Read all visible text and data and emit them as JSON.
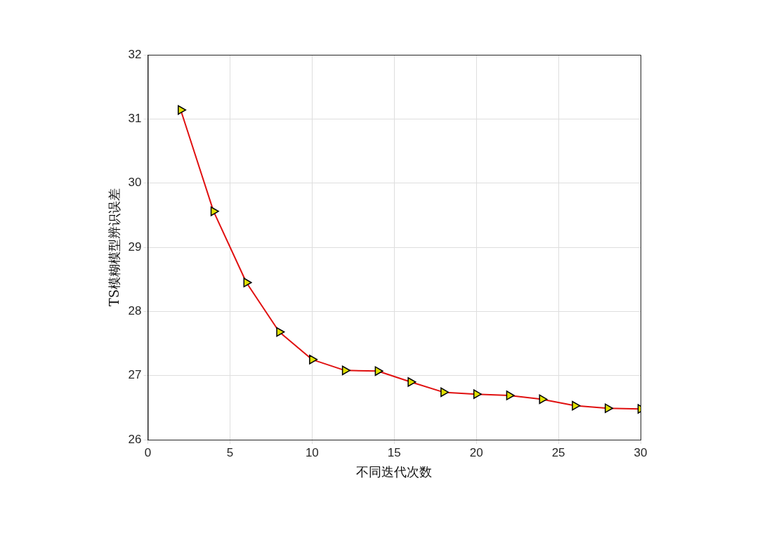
{
  "chart_data": {
    "type": "line",
    "xlabel": "不同迭代次数",
    "ylabel": "TS模糊模型辨识误差",
    "x": [
      2,
      4,
      6,
      8,
      10,
      12,
      14,
      16,
      18,
      20,
      22,
      24,
      26,
      28,
      30
    ],
    "series": [
      {
        "color": "#e01010",
        "colors": [
          "#e0e000",
          "#e0e000",
          "#e0e000",
          "#e0e000",
          "#e0e000",
          "#e0e000",
          "#e0e000",
          "#e0e000",
          "#e0e000",
          "#e0e000",
          "#e0e000",
          "#e0e000",
          "#e0e000",
          "#e0e000",
          "#e0e000"
        ],
        "values": [
          31.14,
          29.56,
          28.45,
          27.68,
          27.25,
          27.08,
          27.07,
          26.9,
          26.74,
          26.71,
          26.69,
          26.63,
          26.53,
          26.49,
          26.48
        ]
      }
    ],
    "xlim": [
      0,
      30
    ],
    "xticks": [
      0,
      5,
      10,
      15,
      20,
      25,
      30
    ],
    "ylim": [
      26,
      32
    ],
    "yticks": [
      26,
      27,
      28,
      29,
      30,
      31,
      32
    ],
    "grid": true,
    "legend": false,
    "marker": "triangle",
    "line_style": "solid"
  }
}
